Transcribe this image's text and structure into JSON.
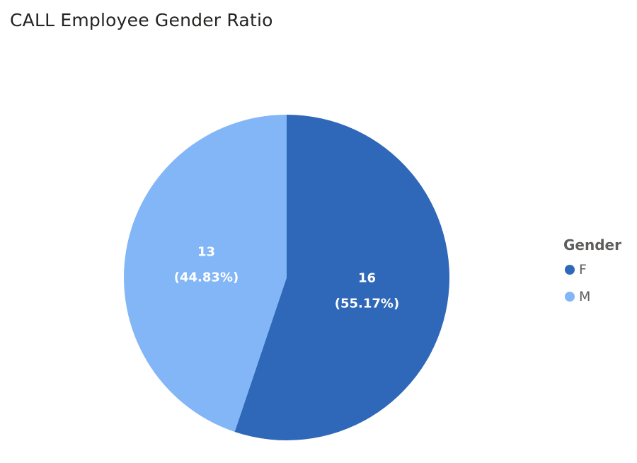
{
  "chart_data": {
    "type": "pie",
    "title": "CALL Employee Gender Ratio",
    "legend_title": "Gender",
    "legend_position": "right",
    "slices": [
      {
        "name": "F",
        "value": 16,
        "percent_label": "(55.17%)",
        "color": "#2f68b8"
      },
      {
        "name": "M",
        "value": 13,
        "percent_label": "(44.83%)",
        "color": "#82b6f6"
      }
    ]
  }
}
